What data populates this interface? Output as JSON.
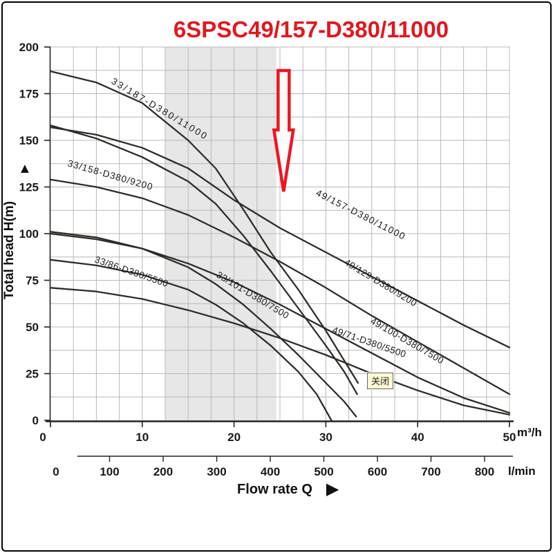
{
  "title": {
    "text": "6SPSC49/157-D380/11000",
    "color": "#df1820"
  },
  "tooltip": {
    "label": "关闭"
  },
  "icons": {
    "head_axis_arrow": "▲",
    "flow_axis_arrow": "▶"
  },
  "colors": {
    "curve": "#2e2b28",
    "grid": "#b8b8b8",
    "axis": "#222222",
    "band": "#e7e7e7",
    "arrow": "#ee1622",
    "tick_text": "#1a1a1a"
  },
  "chart_data": {
    "type": "line",
    "title": "6SPSC49/157-D380/11000",
    "x_axis": {
      "label": "Flow rate Q",
      "primary_unit": "m³/h",
      "primary_ticks": [
        0,
        10,
        20,
        30,
        40,
        50
      ],
      "primary_range": [
        0,
        50
      ],
      "minor_grid_step": 2.5,
      "secondary_unit": "l/min",
      "secondary_ticks": [
        0,
        100,
        200,
        300,
        400,
        500,
        600,
        700,
        800
      ]
    },
    "y_axis": {
      "label": "Total head H(m)",
      "ticks": [
        0,
        25,
        50,
        75,
        100,
        125,
        150,
        175,
        200
      ],
      "range": [
        0,
        200
      ],
      "minor_grid_step": 12.5
    },
    "grid": true,
    "band": {
      "q_start": 12.5,
      "q_end": 24.6
    },
    "annotation_arrow": {
      "q": 25.4,
      "h": 122.6
    },
    "series": [
      {
        "name": "33/187-D380/11000",
        "points": [
          [
            0,
            187
          ],
          [
            5,
            181
          ],
          [
            10,
            170
          ],
          [
            15,
            150
          ],
          [
            18,
            135
          ],
          [
            21,
            113
          ],
          [
            24,
            90
          ],
          [
            27,
            70
          ],
          [
            30,
            48
          ],
          [
            32,
            32
          ],
          [
            33.5,
            20
          ]
        ],
        "label": {
          "x": 160,
          "y": 120,
          "rotate": 31,
          "spacing": 2.5
        }
      },
      {
        "name": "33/158-D380/9200",
        "points": [
          [
            0,
            158
          ],
          [
            5,
            151
          ],
          [
            10,
            141
          ],
          [
            15,
            128
          ],
          [
            18,
            116
          ],
          [
            21,
            99
          ],
          [
            24,
            80
          ],
          [
            27,
            60
          ],
          [
            30,
            40
          ],
          [
            32,
            26
          ],
          [
            33.4,
            14
          ]
        ],
        "label": {
          "x": 97,
          "y": 240,
          "rotate": 16,
          "spacing": 1
        }
      },
      {
        "name": "33/101-D380/7500",
        "points": [
          [
            0,
            101
          ],
          [
            5,
            98
          ],
          [
            10,
            92
          ],
          [
            15,
            82
          ],
          [
            18,
            73
          ],
          [
            21,
            62
          ],
          [
            24,
            49
          ],
          [
            27,
            35
          ],
          [
            30,
            20
          ],
          [
            32,
            10
          ],
          [
            33.3,
            2
          ]
        ],
        "label": {
          "x": 312,
          "y": 400,
          "rotate": 31,
          "spacing": 0.5
        }
      },
      {
        "name": "33/86-D380/5500",
        "points": [
          [
            0,
            86
          ],
          [
            5,
            83
          ],
          [
            10,
            78
          ],
          [
            15,
            70
          ],
          [
            18,
            62
          ],
          [
            21,
            52
          ],
          [
            24,
            40
          ],
          [
            27,
            26
          ],
          [
            29,
            14
          ],
          [
            30.6,
            0
          ]
        ],
        "label": {
          "x": 136,
          "y": 379,
          "rotate": 19,
          "spacing": 0.5
        }
      },
      {
        "name": "49/157-D380/11000",
        "points": [
          [
            0,
            157
          ],
          [
            5,
            153
          ],
          [
            10,
            146
          ],
          [
            15,
            135
          ],
          [
            20,
            118
          ],
          [
            25,
            103
          ],
          [
            30,
            90
          ],
          [
            35,
            77
          ],
          [
            40,
            64
          ],
          [
            45,
            51
          ],
          [
            50,
            39
          ]
        ],
        "label": {
          "x": 456,
          "y": 282,
          "rotate": 27,
          "spacing": 1.5
        }
      },
      {
        "name": "49/129-D380/9200",
        "points": [
          [
            0,
            129
          ],
          [
            5,
            125
          ],
          [
            10,
            119
          ],
          [
            15,
            110
          ],
          [
            20,
            98
          ],
          [
            25,
            85
          ],
          [
            30,
            71
          ],
          [
            35,
            56
          ],
          [
            40,
            42
          ],
          [
            45,
            28
          ],
          [
            50,
            14
          ]
        ],
        "label": {
          "x": 497,
          "y": 382,
          "rotate": 31,
          "spacing": 0.5
        }
      },
      {
        "name": "49/100-D380/7500",
        "points": [
          [
            0,
            100
          ],
          [
            5,
            97
          ],
          [
            10,
            92
          ],
          [
            15,
            84
          ],
          [
            20,
            74
          ],
          [
            25,
            62
          ],
          [
            30,
            49
          ],
          [
            35,
            36
          ],
          [
            40,
            23
          ],
          [
            45,
            12
          ],
          [
            50,
            4
          ]
        ],
        "label": {
          "x": 535,
          "y": 467,
          "rotate": 30,
          "spacing": 0.5
        }
      },
      {
        "name": "49/71-D380/5500",
        "points": [
          [
            0,
            71
          ],
          [
            5,
            69
          ],
          [
            10,
            65
          ],
          [
            15,
            59
          ],
          [
            20,
            52
          ],
          [
            25,
            44
          ],
          [
            30,
            35
          ],
          [
            35,
            25
          ],
          [
            40,
            16
          ],
          [
            45,
            8
          ],
          [
            50,
            3
          ]
        ],
        "label": {
          "x": 480,
          "y": 481,
          "rotate": 19,
          "spacing": 0.5
        }
      }
    ]
  }
}
